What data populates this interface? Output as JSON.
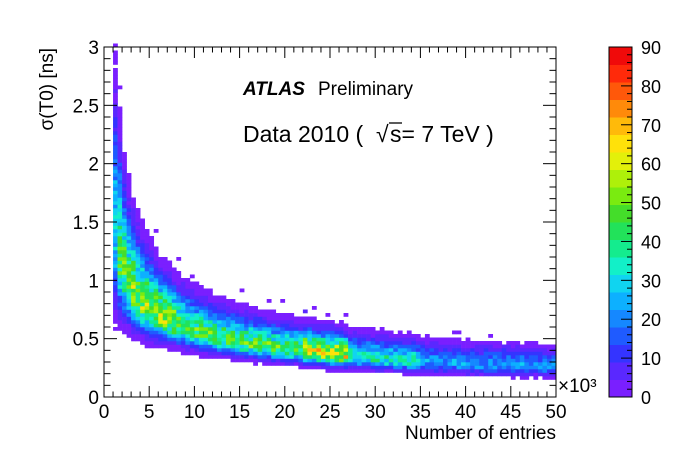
{
  "chart_data": {
    "type": "heatmap",
    "title": "",
    "xlabel": "Number of entries",
    "ylabel": "σ(T0) [ns]",
    "xlim": [
      0,
      50
    ],
    "ylim": [
      0,
      3
    ],
    "x_multiplier_label": "×10³",
    "x_ticks": [
      "0",
      "5",
      "10",
      "15",
      "20",
      "25",
      "30",
      "35",
      "40",
      "45",
      "50"
    ],
    "y_ticks": [
      "0",
      "0.5",
      "1",
      "1.5",
      "2",
      "2.5",
      "3"
    ],
    "colorbar": {
      "range": [
        0,
        90
      ],
      "ticks": [
        "0",
        "10",
        "20",
        "30",
        "40",
        "50",
        "60",
        "70",
        "80",
        "90"
      ],
      "colors": [
        "#7a1fff",
        "#5a28ff",
        "#3434ff",
        "#1f5bff",
        "#1588ff",
        "#0db0ff",
        "#10d4f0",
        "#12f0c8",
        "#14ec8e",
        "#22e25a",
        "#44dd2a",
        "#7aeb10",
        "#aef00a",
        "#e3f00a",
        "#ffe10a",
        "#ffba0a",
        "#ff8a0a",
        "#ff580a",
        "#ff2a0a",
        "#f00a0a"
      ]
    },
    "trend": {
      "description": "Band of entries showing sigma(T0) decreasing with number of entries",
      "x": [
        1,
        2,
        3,
        4,
        5,
        6,
        8,
        10,
        12,
        15,
        18,
        20,
        25,
        30,
        35,
        40,
        45,
        50
      ],
      "y": [
        1.45,
        1.1,
        0.92,
        0.82,
        0.75,
        0.7,
        0.62,
        0.56,
        0.52,
        0.47,
        0.43,
        0.41,
        0.37,
        0.33,
        0.3,
        0.28,
        0.27,
        0.26
      ]
    },
    "annotations": {
      "experiment": "ATLAS",
      "status": "Preliminary",
      "dataset": "Data 2010 (",
      "sqrt_symbol": "√",
      "energy": "s= 7 TeV )"
    }
  },
  "colors": {
    "frame": "#000000",
    "background": "#ffffff"
  }
}
